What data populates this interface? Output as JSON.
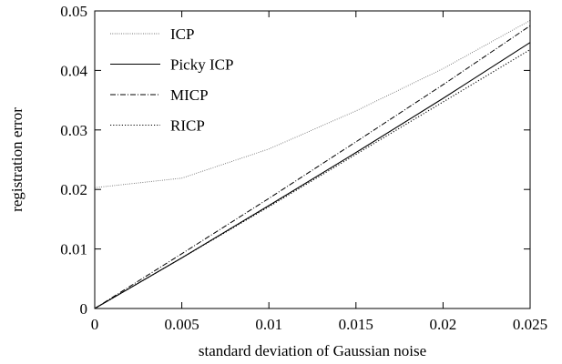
{
  "chart_data": {
    "type": "line",
    "title": "",
    "xlabel": "standard deviation of Gaussian noise",
    "ylabel": "registration error",
    "xlim": [
      0,
      0.025
    ],
    "ylim": [
      0,
      0.05
    ],
    "x_ticks": [
      "0",
      "0.005",
      "0.01",
      "0.015",
      "0.02",
      "0.025"
    ],
    "y_ticks": [
      "0",
      "0.01",
      "0.02",
      "0.03",
      "0.04",
      "0.05"
    ],
    "grid": false,
    "legend_position": "top-left",
    "series": [
      {
        "name": "ICP",
        "line_style": "dotted-fine",
        "x": [
          0,
          0.005,
          0.01,
          0.015,
          0.02,
          0.025
        ],
        "y": [
          0.0203,
          0.0219,
          0.0268,
          0.0332,
          0.0403,
          0.0484
        ]
      },
      {
        "name": "Picky ICP",
        "line_style": "solid",
        "x": [
          0,
          0.005,
          0.01,
          0.015,
          0.02,
          0.025
        ],
        "y": [
          0,
          0.0085,
          0.0173,
          0.0262,
          0.0353,
          0.0447
        ]
      },
      {
        "name": "MICP",
        "line_style": "dash-dot",
        "x": [
          0,
          0.005,
          0.01,
          0.015,
          0.02,
          0.025
        ],
        "y": [
          0,
          0.0092,
          0.0185,
          0.028,
          0.0376,
          0.0475
        ]
      },
      {
        "name": "RICP",
        "line_style": "dotted",
        "x": [
          0,
          0.005,
          0.01,
          0.015,
          0.02,
          0.025
        ],
        "y": [
          0,
          0.0085,
          0.0171,
          0.0259,
          0.0347,
          0.0435
        ]
      }
    ]
  }
}
